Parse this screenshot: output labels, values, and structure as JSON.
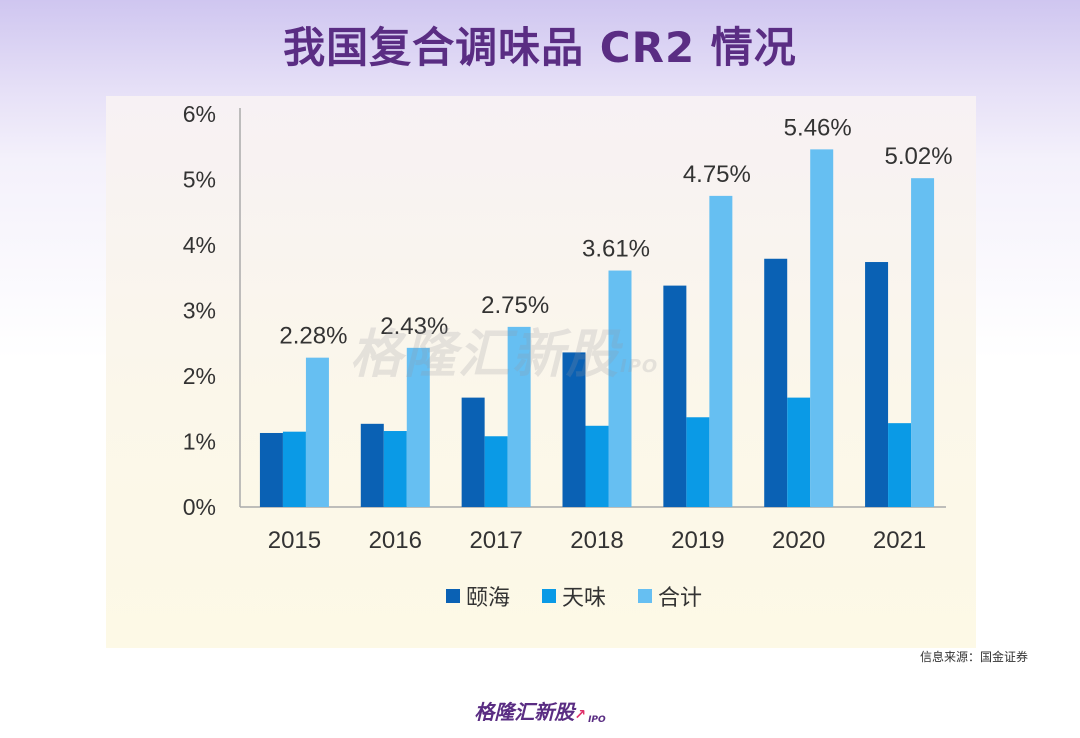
{
  "page": {
    "title": "我国复合调味品 CR2 情况",
    "source": "信息来源：国金证券",
    "watermark": "格隆汇新股",
    "watermark_suffix": "IPO",
    "footer_logo": "格隆汇新股",
    "footer_logo_suffix": "IPO"
  },
  "colors": {
    "series1": "#0a61b4",
    "series2": "#0a9ae6",
    "series3": "#66bff2",
    "axis": "#aaaaaa",
    "text": "#333333"
  },
  "chart_data": {
    "type": "bar",
    "title": "我国复合调味品 CR2 情况",
    "xlabel": "",
    "ylabel": "",
    "categories": [
      "2015",
      "2016",
      "2017",
      "2018",
      "2019",
      "2020",
      "2021"
    ],
    "ylim": [
      0,
      6
    ],
    "yticks": [
      "0%",
      "1%",
      "2%",
      "3%",
      "4%",
      "5%",
      "6%"
    ],
    "grid": false,
    "legend_position": "bottom-center",
    "series": [
      {
        "name": "颐海",
        "values": [
          1.13,
          1.27,
          1.67,
          2.36,
          3.38,
          3.79,
          3.74
        ]
      },
      {
        "name": "天味",
        "values": [
          1.15,
          1.16,
          1.08,
          1.24,
          1.37,
          1.67,
          1.28
        ]
      },
      {
        "name": "合计",
        "values": [
          2.28,
          2.43,
          2.75,
          3.61,
          4.75,
          5.46,
          5.02
        ]
      }
    ],
    "data_labels": [
      "2.28%",
      "2.43%",
      "2.75%",
      "3.61%",
      "4.75%",
      "5.46%",
      "5.02%"
    ]
  }
}
